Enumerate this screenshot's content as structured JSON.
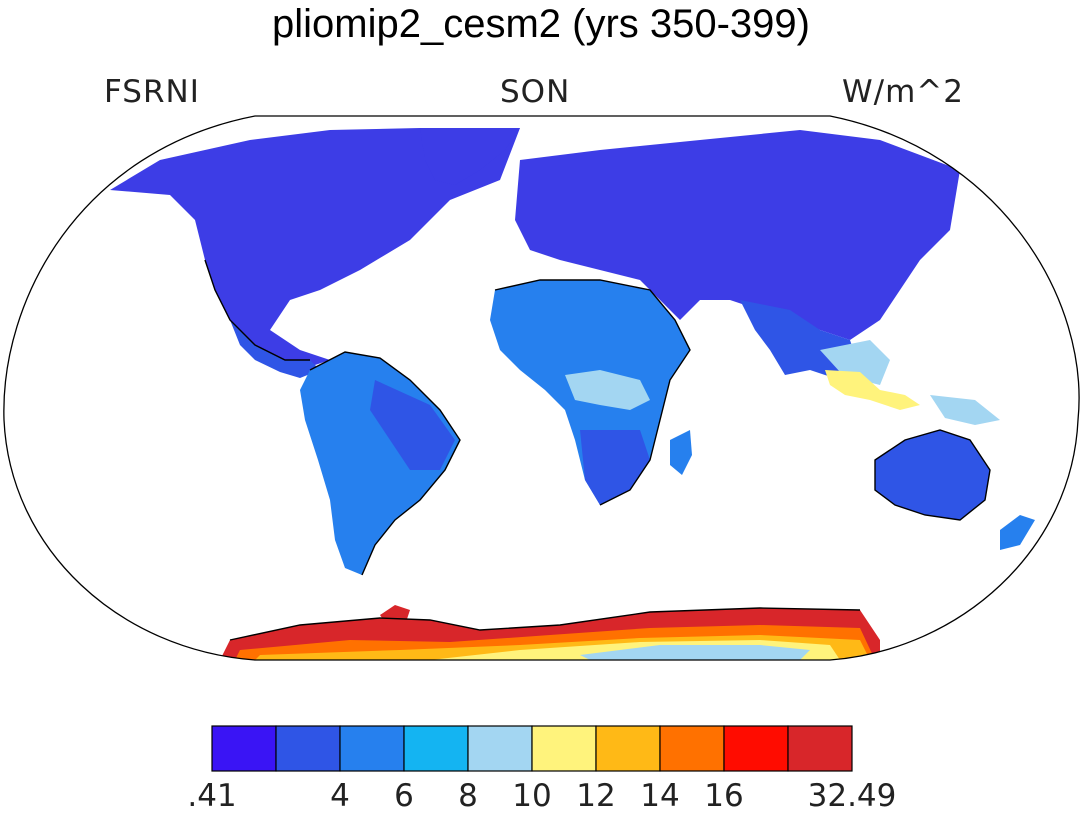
{
  "title": "pliomip2_cesm2 (yrs 350-399)",
  "left_label": "FSRNI",
  "center_label": "SON",
  "right_label": "W/m^2",
  "colorbar": {
    "labels": [
      ".41",
      "4",
      "6",
      "8",
      "10",
      "12",
      "14",
      "16",
      "32.49"
    ],
    "colors": [
      "#3a14f5",
      "#2f55e6",
      "#2680ee",
      "#14b4f2",
      "#a3d6f2",
      "#fff37c",
      "#ffb916",
      "#ff7100",
      "#ff0c00",
      "#d8262a"
    ]
  },
  "map_colors": {
    "land_dark_blue": "#3d3de6",
    "land_mid_blue": "#2f55e6",
    "land_light_blue": "#2680ee",
    "land_cyan": "#14b4f2",
    "land_pale_blue": "#a3d6f2",
    "land_yellow": "#fff37c",
    "antarctic_red": "#d8262a",
    "antarctic_orange": "#ff7100",
    "antarctic_gold": "#ffb916"
  }
}
